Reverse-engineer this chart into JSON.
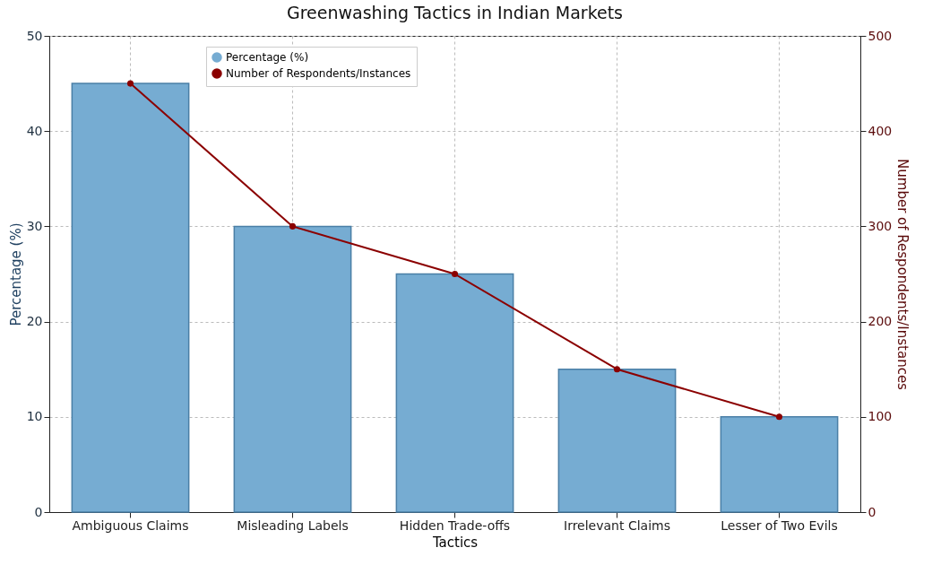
{
  "chart_data": {
    "type": "bar",
    "title": "Greenwashing Tactics in Indian Markets",
    "xlabel": "Tactics",
    "ylabel": "Percentage (%)",
    "y2label": "Number of Respondents/Instances",
    "categories": [
      "Ambiguous Claims",
      "Misleading Labels",
      "Hidden Trade-offs",
      "Irrelevant Claims",
      "Lesser of Two Evils"
    ],
    "series": [
      {
        "name": "Percentage (%)",
        "color": "#76acd2",
        "values": [
          45,
          30,
          25,
          15,
          10
        ]
      },
      {
        "name": "Number of Respondents/Instances",
        "type": "line",
        "axis": "y2",
        "color": "#8b0000",
        "values": [
          450,
          300,
          250,
          150,
          100
        ]
      }
    ],
    "ylim": [
      0,
      50
    ],
    "yticks": [
      0,
      10,
      20,
      30,
      40,
      50
    ],
    "y2lim": [
      0,
      500
    ],
    "y2ticks": [
      0,
      100,
      200,
      300,
      400,
      500
    ],
    "grid": true,
    "legend": "top left",
    "marker": "circle",
    "line_style": "solid"
  }
}
